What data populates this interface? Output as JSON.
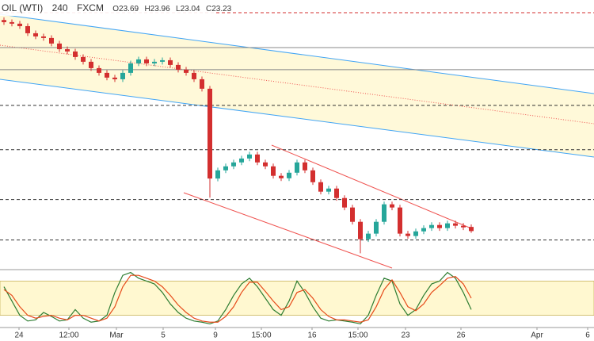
{
  "header": {
    "symbol": "OIL (WTI)",
    "interval": "240",
    "source": "FXCM",
    "open": "O23.69",
    "high": "H23.96",
    "low": "L23.04",
    "close": "C23.23"
  },
  "chart_data": {
    "type": "candlestick",
    "xlim": [
      -0.5,
      74.5
    ],
    "ylim": [
      19,
      48.6
    ],
    "up_color": "#26a69a",
    "down_color": "#d32f2f",
    "x_labels": [
      {
        "value": 1.9,
        "label": "24"
      },
      {
        "value": 8.2,
        "label": "12:00"
      },
      {
        "value": 14.2,
        "label": "Mar"
      },
      {
        "value": 20.1,
        "label": "5"
      },
      {
        "value": 26.7,
        "label": "9"
      },
      {
        "value": 32.5,
        "label": "15:00"
      },
      {
        "value": 38.9,
        "label": "16"
      },
      {
        "value": 44.7,
        "label": "15:00"
      },
      {
        "value": 50.7,
        "label": "23"
      },
      {
        "value": 57.7,
        "label": "26"
      },
      {
        "value": 67.3,
        "label": "Apr"
      },
      {
        "value": 73.7,
        "label": "6"
      }
    ],
    "levels": [
      {
        "value": 47.21,
        "color": "#d32f2f",
        "dashed": true
      },
      {
        "value": 43.38,
        "color": "#888888",
        "dashed": false
      },
      {
        "value": 40.95,
        "color": "#888888",
        "dashed": false
      },
      {
        "value": 37.03,
        "color": "#333333",
        "dashed": true
      },
      {
        "value": 32.17,
        "color": "#333333",
        "dashed": true
      },
      {
        "value": 26.69,
        "color": "#333333",
        "dashed": true
      },
      {
        "value": 22.25,
        "color": "#333333",
        "dashed": true
      }
    ],
    "open": [
      46.4,
      46.17,
      46.0,
      45.73,
      44.95,
      44.6,
      44.43,
      43.82,
      43.2,
      42.95,
      42.34,
      41.82,
      41.12,
      40.6,
      40.08,
      39.9,
      40.6,
      41.64,
      42.08,
      41.64,
      41.82,
      41.99,
      41.47,
      40.95,
      40.6,
      39.9,
      38.86,
      29.0,
      29.9,
      30.34,
      30.77,
      31.2,
      31.64,
      30.77,
      30.34,
      29.3,
      29.03,
      29.64,
      30.77,
      29.9,
      28.6,
      27.56,
      27.9,
      26.86,
      25.82,
      24.25,
      22.34,
      22.95,
      24.25,
      26.17,
      25.82,
      22.95,
      22.69,
      23.2,
      23.56,
      23.9,
      23.56,
      24.08,
      23.82,
      23.69
    ],
    "high": [
      46.7,
      46.47,
      46.3,
      46.03,
      45.25,
      44.9,
      44.73,
      44.12,
      43.5,
      43.25,
      42.64,
      42.12,
      41.42,
      40.9,
      40.38,
      40.9,
      41.94,
      42.38,
      42.38,
      42.12,
      42.29,
      42.29,
      41.77,
      41.25,
      40.9,
      40.2,
      39.16,
      30.2,
      30.64,
      31.07,
      31.5,
      31.94,
      31.94,
      31.07,
      30.64,
      29.6,
      29.94,
      31.07,
      31.07,
      30.2,
      28.9,
      28.2,
      28.2,
      27.16,
      26.12,
      24.55,
      23.25,
      24.55,
      26.47,
      26.47,
      26.12,
      23.25,
      23.5,
      23.86,
      24.2,
      24.2,
      24.38,
      24.38,
      24.12,
      23.96
    ],
    "low": [
      45.87,
      45.7,
      45.43,
      44.65,
      44.3,
      44.13,
      43.52,
      42.9,
      42.65,
      42.04,
      41.52,
      40.82,
      40.3,
      39.78,
      39.6,
      39.6,
      40.3,
      41.34,
      41.34,
      41.34,
      41.52,
      41.17,
      40.65,
      40.3,
      39.6,
      38.56,
      26.9,
      28.7,
      29.6,
      30.04,
      30.47,
      30.9,
      30.47,
      30.04,
      29.0,
      28.73,
      28.73,
      29.34,
      29.6,
      28.3,
      27.26,
      27.26,
      26.56,
      25.52,
      23.95,
      20.8,
      22.04,
      22.65,
      23.95,
      25.52,
      22.65,
      22.39,
      22.39,
      22.9,
      23.26,
      23.26,
      23.26,
      23.52,
      23.34,
      23.04
    ],
    "close": [
      46.17,
      46.0,
      45.73,
      44.95,
      44.6,
      44.43,
      43.82,
      43.2,
      42.95,
      42.34,
      41.82,
      41.12,
      40.6,
      40.08,
      39.9,
      40.6,
      41.64,
      42.08,
      41.64,
      41.82,
      41.99,
      41.47,
      40.95,
      40.6,
      39.9,
      38.86,
      29.0,
      29.9,
      30.34,
      30.77,
      31.2,
      31.64,
      30.77,
      30.34,
      29.3,
      29.03,
      29.64,
      30.77,
      29.9,
      28.6,
      27.56,
      27.9,
      26.86,
      25.82,
      24.25,
      22.34,
      22.95,
      24.25,
      26.17,
      25.82,
      22.95,
      22.69,
      23.2,
      23.56,
      23.9,
      23.56,
      24.08,
      23.82,
      23.64,
      23.23
    ],
    "oscillator": {
      "ylim": [
        0,
        100
      ],
      "band": [
        20,
        80
      ],
      "series": [
        {
          "color": "#2e7d32",
          "values": [
            70,
            45,
            20,
            10,
            12,
            25,
            18,
            10,
            12,
            30,
            15,
            8,
            10,
            20,
            60,
            90,
            95,
            85,
            80,
            75,
            60,
            40,
            25,
            15,
            10,
            8,
            5,
            10,
            30,
            55,
            75,
            85,
            70,
            50,
            30,
            20,
            45,
            80,
            60,
            35,
            15,
            10,
            12,
            10,
            8,
            5,
            20,
            55,
            85,
            80,
            40,
            20,
            30,
            55,
            75,
            80,
            95,
            85,
            60,
            30
          ]
        },
        {
          "color": "#e64a19",
          "values": [
            65,
            55,
            35,
            20,
            15,
            18,
            20,
            15,
            12,
            20,
            20,
            15,
            10,
            15,
            35,
            70,
            90,
            90,
            85,
            80,
            70,
            55,
            38,
            25,
            15,
            10,
            8,
            8,
            18,
            35,
            60,
            78,
            78,
            62,
            45,
            30,
            35,
            60,
            65,
            50,
            30,
            18,
            12,
            12,
            10,
            8,
            12,
            35,
            65,
            82,
            60,
            35,
            28,
            40,
            60,
            72,
            85,
            88,
            75,
            50
          ]
        }
      ]
    }
  }
}
